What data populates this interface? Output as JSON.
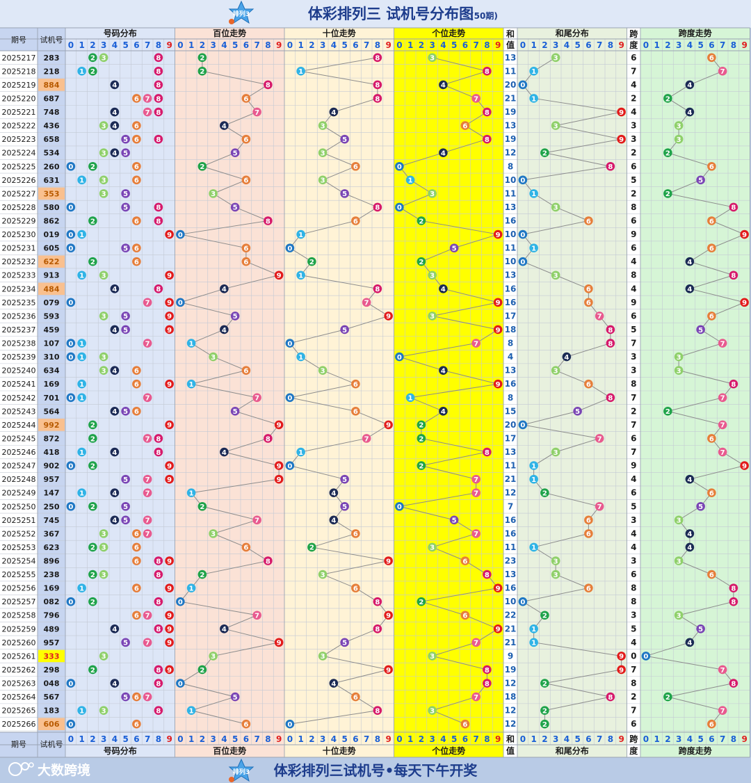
{
  "header": {
    "logo_text": "排列3",
    "title": "体彩排列三 试机号分布图",
    "subtitle": "(50期)"
  },
  "footer": {
    "brand": "大数跨境",
    "slogan": "体彩排列三试机号•每天下午开奖"
  },
  "columns": {
    "period": "期号",
    "number": "试机号",
    "dist": "号码分布",
    "hundreds": "百位走势",
    "tens": "十位走势",
    "units": "个位走势",
    "sum_top": "和",
    "sum_bottom": "值",
    "tail": "和尾分布",
    "span_top": "跨",
    "span_bottom": "度",
    "span_trend": "跨度走势"
  },
  "digits": [
    "0",
    "1",
    "2",
    "3",
    "4",
    "5",
    "6",
    "7",
    "8",
    "9"
  ],
  "colors": {
    "title": "#1d3c8c",
    "digit_header": "#1a5fd6",
    "digit_header_red": "#e02020",
    "sum_text": "#1d5fb0",
    "bg_dist": "#dde6f7",
    "bg_hundreds": "#fbe2d6",
    "bg_tens": "#fff3d6",
    "bg_units": "#ffff00",
    "bg_tail": "#e8f1de",
    "bg_span": "#d6f5d6",
    "number_highlight_orange": "#f9c08f",
    "number_highlight_yellow": "#ffff00",
    "digit_ball": [
      "#1f77c4",
      "#2fb3e6",
      "#1fa34a",
      "#8fd06a",
      "#1b2a55",
      "#7a45b5",
      "#e67e3a",
      "#e85a8f",
      "#d6196b",
      "#e21b1b"
    ]
  },
  "chart_data": {
    "type": "table",
    "title": "体彩排列三 试机号分布图",
    "subtitle": "(50期)",
    "rows": [
      {
        "period": "2025217",
        "number": "283",
        "sum": "13",
        "span": "6",
        "highlight": ""
      },
      {
        "period": "2025218",
        "number": "218",
        "sum": "11",
        "span": "7",
        "highlight": ""
      },
      {
        "period": "2025219",
        "number": "884",
        "sum": "20",
        "span": "4",
        "highlight": "orange"
      },
      {
        "period": "2025220",
        "number": "687",
        "sum": "21",
        "span": "2",
        "highlight": ""
      },
      {
        "period": "2025221",
        "number": "748",
        "sum": "19",
        "span": "4",
        "highlight": ""
      },
      {
        "period": "2025222",
        "number": "436",
        "sum": "13",
        "span": "3",
        "highlight": ""
      },
      {
        "period": "2025223",
        "number": "658",
        "sum": "19",
        "span": "3",
        "highlight": ""
      },
      {
        "period": "2025224",
        "number": "534",
        "sum": "12",
        "span": "2",
        "highlight": ""
      },
      {
        "period": "2025225",
        "number": "260",
        "sum": "8",
        "span": "6",
        "highlight": ""
      },
      {
        "period": "2025226",
        "number": "631",
        "sum": "10",
        "span": "5",
        "highlight": ""
      },
      {
        "period": "2025227",
        "number": "353",
        "sum": "11",
        "span": "2",
        "highlight": "orange"
      },
      {
        "period": "2025228",
        "number": "580",
        "sum": "13",
        "span": "8",
        "highlight": ""
      },
      {
        "period": "2025229",
        "number": "862",
        "sum": "16",
        "span": "6",
        "highlight": ""
      },
      {
        "period": "2025230",
        "number": "019",
        "sum": "10",
        "span": "9",
        "highlight": ""
      },
      {
        "period": "2025231",
        "number": "605",
        "sum": "11",
        "span": "6",
        "highlight": ""
      },
      {
        "period": "2025232",
        "number": "622",
        "sum": "10",
        "span": "4",
        "highlight": "orange"
      },
      {
        "period": "2025233",
        "number": "913",
        "sum": "13",
        "span": "8",
        "highlight": ""
      },
      {
        "period": "2025234",
        "number": "484",
        "sum": "16",
        "span": "4",
        "highlight": "orange"
      },
      {
        "period": "2025235",
        "number": "079",
        "sum": "16",
        "span": "9",
        "highlight": ""
      },
      {
        "period": "2025236",
        "number": "593",
        "sum": "17",
        "span": "6",
        "highlight": ""
      },
      {
        "period": "2025237",
        "number": "459",
        "sum": "18",
        "span": "5",
        "highlight": ""
      },
      {
        "period": "2025238",
        "number": "107",
        "sum": "8",
        "span": "7",
        "highlight": ""
      },
      {
        "period": "2025239",
        "number": "310",
        "sum": "4",
        "span": "3",
        "highlight": ""
      },
      {
        "period": "2025240",
        "number": "634",
        "sum": "13",
        "span": "3",
        "highlight": ""
      },
      {
        "period": "2025241",
        "number": "169",
        "sum": "16",
        "span": "8",
        "highlight": ""
      },
      {
        "period": "2025242",
        "number": "701",
        "sum": "8",
        "span": "7",
        "highlight": ""
      },
      {
        "period": "2025243",
        "number": "564",
        "sum": "15",
        "span": "2",
        "highlight": ""
      },
      {
        "period": "2025244",
        "number": "992",
        "sum": "20",
        "span": "7",
        "highlight": "orange"
      },
      {
        "period": "2025245",
        "number": "872",
        "sum": "17",
        "span": "6",
        "highlight": ""
      },
      {
        "period": "2025246",
        "number": "418",
        "sum": "13",
        "span": "7",
        "highlight": ""
      },
      {
        "period": "2025247",
        "number": "902",
        "sum": "11",
        "span": "9",
        "highlight": ""
      },
      {
        "period": "2025248",
        "number": "957",
        "sum": "21",
        "span": "4",
        "highlight": ""
      },
      {
        "period": "2025249",
        "number": "147",
        "sum": "12",
        "span": "6",
        "highlight": ""
      },
      {
        "period": "2025250",
        "number": "250",
        "sum": "7",
        "span": "5",
        "highlight": ""
      },
      {
        "period": "2025251",
        "number": "745",
        "sum": "16",
        "span": "3",
        "highlight": ""
      },
      {
        "period": "2025252",
        "number": "367",
        "sum": "16",
        "span": "4",
        "highlight": ""
      },
      {
        "period": "2025253",
        "number": "623",
        "sum": "11",
        "span": "4",
        "highlight": ""
      },
      {
        "period": "2025254",
        "number": "896",
        "sum": "23",
        "span": "3",
        "highlight": ""
      },
      {
        "period": "2025255",
        "number": "238",
        "sum": "13",
        "span": "6",
        "highlight": ""
      },
      {
        "period": "2025256",
        "number": "169",
        "sum": "16",
        "span": "8",
        "highlight": ""
      },
      {
        "period": "2025257",
        "number": "082",
        "sum": "10",
        "span": "8",
        "highlight": ""
      },
      {
        "period": "2025258",
        "number": "796",
        "sum": "22",
        "span": "3",
        "highlight": ""
      },
      {
        "period": "2025259",
        "number": "489",
        "sum": "21",
        "span": "5",
        "highlight": ""
      },
      {
        "period": "2025260",
        "number": "957",
        "sum": "21",
        "span": "4",
        "highlight": ""
      },
      {
        "period": "2025261",
        "number": "333",
        "sum": "9",
        "span": "0",
        "highlight": "yellow"
      },
      {
        "period": "2025262",
        "number": "298",
        "sum": "19",
        "span": "7",
        "highlight": ""
      },
      {
        "period": "2025263",
        "number": "048",
        "sum": "12",
        "span": "8",
        "highlight": ""
      },
      {
        "period": "2025264",
        "number": "567",
        "sum": "18",
        "span": "2",
        "highlight": ""
      },
      {
        "period": "2025265",
        "number": "183",
        "sum": "12",
        "span": "7",
        "highlight": ""
      },
      {
        "period": "2025266",
        "number": "606",
        "sum": "12",
        "span": "6",
        "highlight": "orange"
      }
    ]
  }
}
